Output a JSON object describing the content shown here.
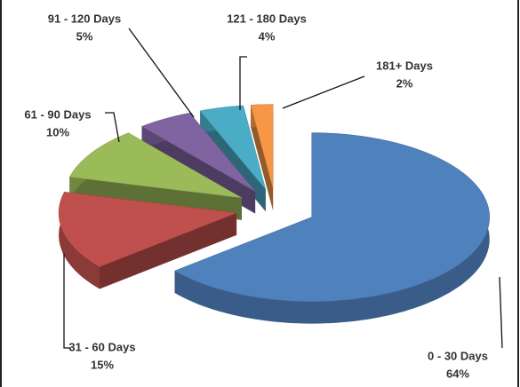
{
  "chart_data": {
    "type": "pie",
    "categories": [
      "0 - 30 Days",
      "31 - 60 Days",
      "61 - 90 Days",
      "91 - 120 Days",
      "121 - 180 Days",
      "181+ Days"
    ],
    "values": [
      64,
      15,
      10,
      5,
      4,
      2
    ],
    "value_labels": [
      "64%",
      "15%",
      "10%",
      "5%",
      "4%",
      "2%"
    ],
    "colors": [
      "#4f81bd",
      "#c0504d",
      "#9bbb59",
      "#8064a2",
      "#4bacc6",
      "#f79646"
    ]
  }
}
